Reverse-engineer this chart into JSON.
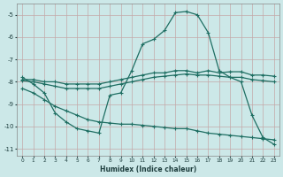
{
  "xlabel": "Humidex (Indice chaleur)",
  "background_color": "#cce8e8",
  "grid_color": "#b0d4d4",
  "line_color": "#1e6e62",
  "xlim": [
    -0.5,
    23.5
  ],
  "ylim": [
    -11.3,
    -4.5
  ],
  "yticks": [
    -11,
    -10,
    -9,
    -8,
    -7,
    -6,
    -5
  ],
  "xticks": [
    0,
    1,
    2,
    3,
    4,
    5,
    6,
    7,
    8,
    9,
    10,
    11,
    12,
    13,
    14,
    15,
    16,
    17,
    18,
    19,
    20,
    21,
    22,
    23
  ],
  "curves": [
    {
      "x": [
        0,
        1,
        2,
        3,
        4,
        5,
        6,
        7,
        8,
        9,
        10,
        11,
        12,
        13,
        14,
        15,
        16,
        17,
        18,
        19,
        20,
        21,
        22,
        23
      ],
      "y": [
        -7.8,
        -8.1,
        -8.5,
        -9.4,
        -9.8,
        -10.1,
        -10.2,
        -10.3,
        -8.6,
        -8.5,
        -7.5,
        -6.3,
        -6.1,
        -5.7,
        -4.9,
        -4.85,
        -5.0,
        -5.8,
        -7.5,
        -7.8,
        -8.0,
        -9.5,
        -10.5,
        -10.8
      ]
    },
    {
      "x": [
        0,
        1,
        2,
        3,
        4,
        5,
        6,
        7,
        8,
        9,
        10,
        11,
        12,
        13,
        14,
        15,
        16,
        17,
        18,
        19,
        20,
        21,
        22,
        23
      ],
      "y": [
        -7.9,
        -7.9,
        -8.0,
        -8.0,
        -8.1,
        -8.1,
        -8.1,
        -8.1,
        -8.0,
        -7.9,
        -7.8,
        -7.7,
        -7.6,
        -7.6,
        -7.5,
        -7.5,
        -7.6,
        -7.5,
        -7.6,
        -7.55,
        -7.55,
        -7.7,
        -7.7,
        -7.75
      ]
    },
    {
      "x": [
        0,
        1,
        2,
        3,
        4,
        5,
        6,
        7,
        8,
        9,
        10,
        11,
        12,
        13,
        14,
        15,
        16,
        17,
        18,
        19,
        20,
        21,
        22,
        23
      ],
      "y": [
        -7.95,
        -8.0,
        -8.1,
        -8.2,
        -8.3,
        -8.3,
        -8.3,
        -8.3,
        -8.2,
        -8.1,
        -8.0,
        -7.9,
        -7.8,
        -7.75,
        -7.7,
        -7.65,
        -7.7,
        -7.7,
        -7.75,
        -7.8,
        -7.8,
        -7.9,
        -7.95,
        -8.0
      ]
    },
    {
      "x": [
        0,
        1,
        2,
        3,
        4,
        5,
        6,
        7,
        8,
        9,
        10,
        11,
        12,
        13,
        14,
        15,
        16,
        17,
        18,
        19,
        20,
        21,
        22,
        23
      ],
      "y": [
        -8.3,
        -8.5,
        -8.8,
        -9.1,
        -9.3,
        -9.5,
        -9.7,
        -9.8,
        -9.85,
        -9.9,
        -9.9,
        -9.95,
        -10.0,
        -10.05,
        -10.1,
        -10.1,
        -10.2,
        -10.3,
        -10.35,
        -10.4,
        -10.45,
        -10.5,
        -10.55,
        -10.6
      ]
    }
  ]
}
